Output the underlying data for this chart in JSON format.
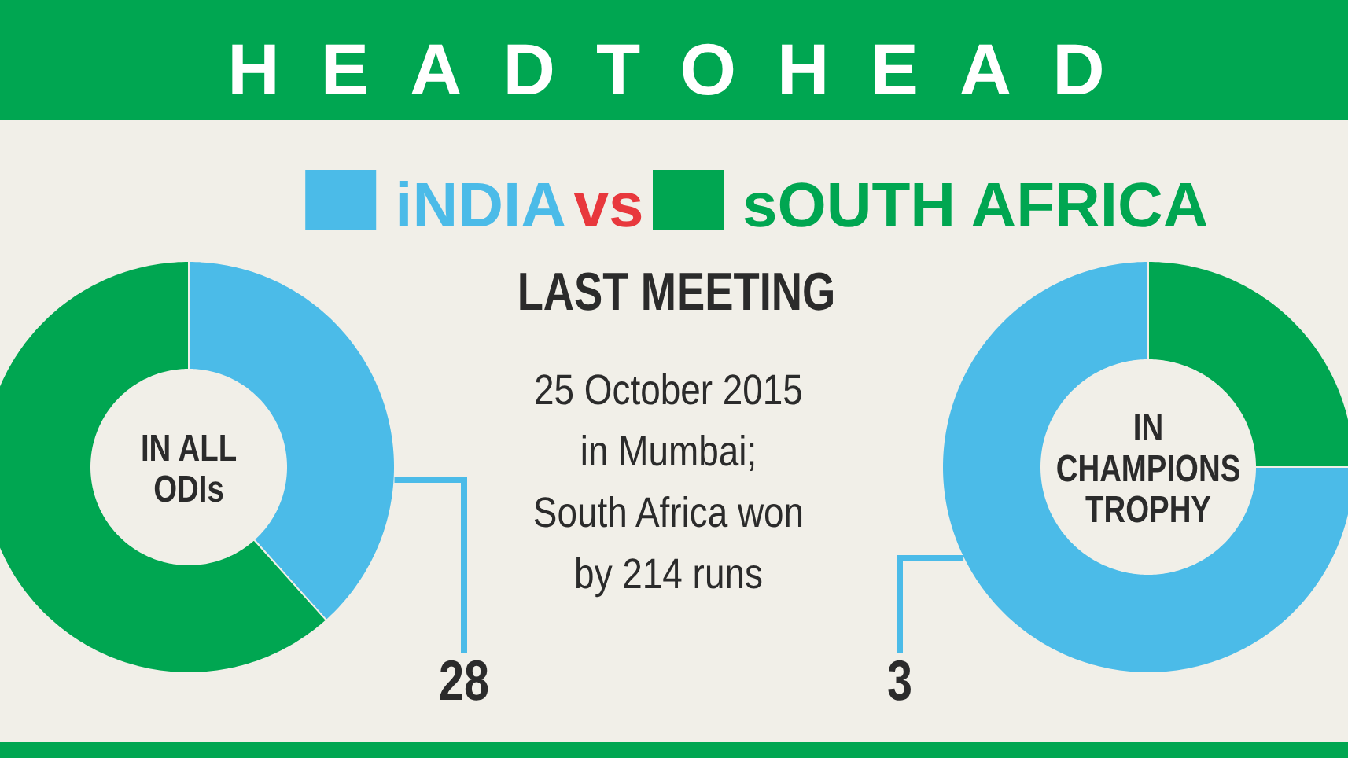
{
  "chart_data": [
    {
      "type": "donut",
      "title": "HEADTOHEAD",
      "subtitle": "LAST MEETING",
      "categories": [
        "iNDIA",
        "sOUTH AFRICA"
      ],
      "values": [
        28,
        45
      ],
      "colors": [
        "#4bbbe8",
        "#00a651"
      ],
      "value_labels": [
        "28",
        null
      ],
      "legend": "top",
      "annotations": [
        "IN ALL ODIs",
        "vs",
        "25 October 2015",
        "in Mumbai;",
        "South Africa won",
        "by 214 runs"
      ]
    },
    {
      "type": "donut",
      "values": [
        3,
        1
      ],
      "colors": [
        "#4bbbe8",
        "#00a651"
      ],
      "value_labels": [
        "3",
        null
      ],
      "annotations": [
        "IN CHAMPIONS TROPHY"
      ]
    }
  ]
}
